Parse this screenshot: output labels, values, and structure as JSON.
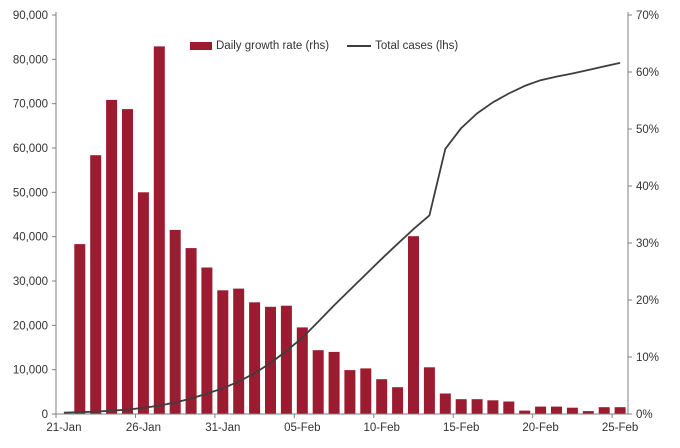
{
  "legend": {
    "bar_label": "Daily growth rate (rhs)",
    "line_label": "Total cases (lhs)"
  },
  "colors": {
    "bar": "#9B1C30",
    "line": "#3D3D3D",
    "axis": "#808080",
    "text": "#333333",
    "background": "#FFFFFF"
  },
  "chart_data": {
    "type": "bar",
    "subtype": "bar+line dual-axis combo",
    "title": "",
    "grid": "off",
    "legend_position": "top-center",
    "categories": [
      "21-Jan",
      "22-Jan",
      "23-Jan",
      "24-Jan",
      "25-Jan",
      "26-Jan",
      "27-Jan",
      "28-Jan",
      "29-Jan",
      "30-Jan",
      "31-Jan",
      "01-Feb",
      "02-Feb",
      "03-Feb",
      "04-Feb",
      "05-Feb",
      "06-Feb",
      "07-Feb",
      "08-Feb",
      "09-Feb",
      "10-Feb",
      "11-Feb",
      "12-Feb",
      "13-Feb",
      "14-Feb",
      "15-Feb",
      "16-Feb",
      "17-Feb",
      "18-Feb",
      "19-Feb",
      "20-Feb",
      "21-Feb",
      "22-Feb",
      "23-Feb",
      "24-Feb",
      "25-Feb"
    ],
    "x_axis": {
      "labeled_categories": [
        "21-Jan",
        "26-Jan",
        "31-Jan",
        "05-Feb",
        "10-Feb",
        "15-Feb",
        "20-Feb",
        "25-Feb"
      ],
      "label_every": 5
    },
    "left_axis": {
      "min": 0,
      "max": 90000,
      "tick_step": 10000,
      "tick_labels": [
        "0",
        "10,000",
        "20,000",
        "30,000",
        "40,000",
        "50,000",
        "60,000",
        "70,000",
        "80,000",
        "90,000"
      ]
    },
    "right_axis": {
      "min": 0,
      "max": 70,
      "tick_step": 10,
      "tick_labels": [
        "0%",
        "10%",
        "20%",
        "30%",
        "40%",
        "50%",
        "60%",
        "70%"
      ]
    },
    "series": [
      {
        "name": "Daily growth rate (rhs)",
        "type": "bar",
        "axis": "right",
        "unit": "%",
        "color": "#9B1C30",
        "values": [
          null,
          29.8,
          45.4,
          55.1,
          53.5,
          38.9,
          64.5,
          32.3,
          29.1,
          25.7,
          21.7,
          22.0,
          19.6,
          18.8,
          19.0,
          15.2,
          11.2,
          10.9,
          7.7,
          8.0,
          6.1,
          4.7,
          31.2,
          8.2,
          3.6,
          2.6,
          2.6,
          2.4,
          2.2,
          0.6,
          1.3,
          1.3,
          1.1,
          0.5,
          1.2,
          1.2
        ]
      },
      {
        "name": "Total cases (lhs)",
        "type": "line",
        "axis": "left",
        "unit": "cases",
        "color": "#3D3D3D",
        "values": [
          300,
          400,
          550,
          750,
          1000,
          1400,
          1900,
          2600,
          3500,
          4600,
          5800,
          7300,
          9200,
          11500,
          14200,
          17200,
          20800,
          24500,
          28000,
          31500,
          35000,
          38400,
          41700,
          44800,
          59800,
          64500,
          67800,
          70300,
          72300,
          74000,
          75300,
          76100,
          76800,
          77600,
          78400,
          79200
        ]
      }
    ]
  }
}
